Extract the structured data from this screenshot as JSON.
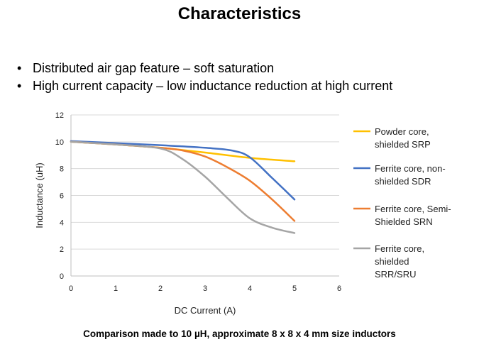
{
  "slide": {
    "title": "Characteristics",
    "bullets": [
      "Distributed air gap feature – soft saturation",
      "High current capacity – low inductance reduction at high current"
    ],
    "footnote": "Comparison made to 10 µH, approximate 8 x 8 x 4 mm size inductors"
  },
  "chart_data": {
    "type": "line",
    "xlabel": "DC Current  (A)",
    "ylabel": "Inductance  (uH)",
    "xlim": [
      0,
      6
    ],
    "ylim": [
      0,
      12
    ],
    "xticks": [
      "0",
      "1",
      "2",
      "3",
      "4",
      "5",
      "6"
    ],
    "yticks": [
      "0",
      "2",
      "4",
      "6",
      "8",
      "10",
      "12"
    ],
    "grid": "horizontal",
    "legend_position": "right",
    "series": [
      {
        "name_lines": [
          "Powder core,",
          "shielded SRP"
        ],
        "color": "#FFC000",
        "points": [
          [
            0,
            10.0
          ],
          [
            1,
            9.8
          ],
          [
            2,
            9.55
          ],
          [
            3,
            9.2
          ],
          [
            4,
            8.8
          ],
          [
            5,
            8.55
          ]
        ]
      },
      {
        "name_lines": [
          "Ferrite core, non-",
          "shielded SDR"
        ],
        "color": "#4472C4",
        "points": [
          [
            0,
            10.05
          ],
          [
            1,
            9.9
          ],
          [
            2,
            9.75
          ],
          [
            3,
            9.55
          ],
          [
            3.6,
            9.35
          ],
          [
            4,
            8.85
          ],
          [
            4.5,
            7.3
          ],
          [
            5,
            5.7
          ]
        ]
      },
      {
        "name_lines": [
          "Ferrite core, Semi-",
          "Shielded SRN"
        ],
        "color": "#ED7D31",
        "points": [
          [
            0,
            10.0
          ],
          [
            1,
            9.8
          ],
          [
            2,
            9.55
          ],
          [
            2.5,
            9.35
          ],
          [
            3,
            8.9
          ],
          [
            3.5,
            8.1
          ],
          [
            4,
            7.1
          ],
          [
            4.5,
            5.7
          ],
          [
            5,
            4.1
          ]
        ]
      },
      {
        "name_lines": [
          "Ferrite core,",
          "shielded",
          "SRR/SRU"
        ],
        "color": "#A5A5A5",
        "points": [
          [
            0,
            10.0
          ],
          [
            1,
            9.8
          ],
          [
            2,
            9.5
          ],
          [
            2.5,
            8.7
          ],
          [
            3,
            7.4
          ],
          [
            3.5,
            5.8
          ],
          [
            4,
            4.3
          ],
          [
            4.5,
            3.6
          ],
          [
            5,
            3.2
          ]
        ]
      }
    ]
  }
}
